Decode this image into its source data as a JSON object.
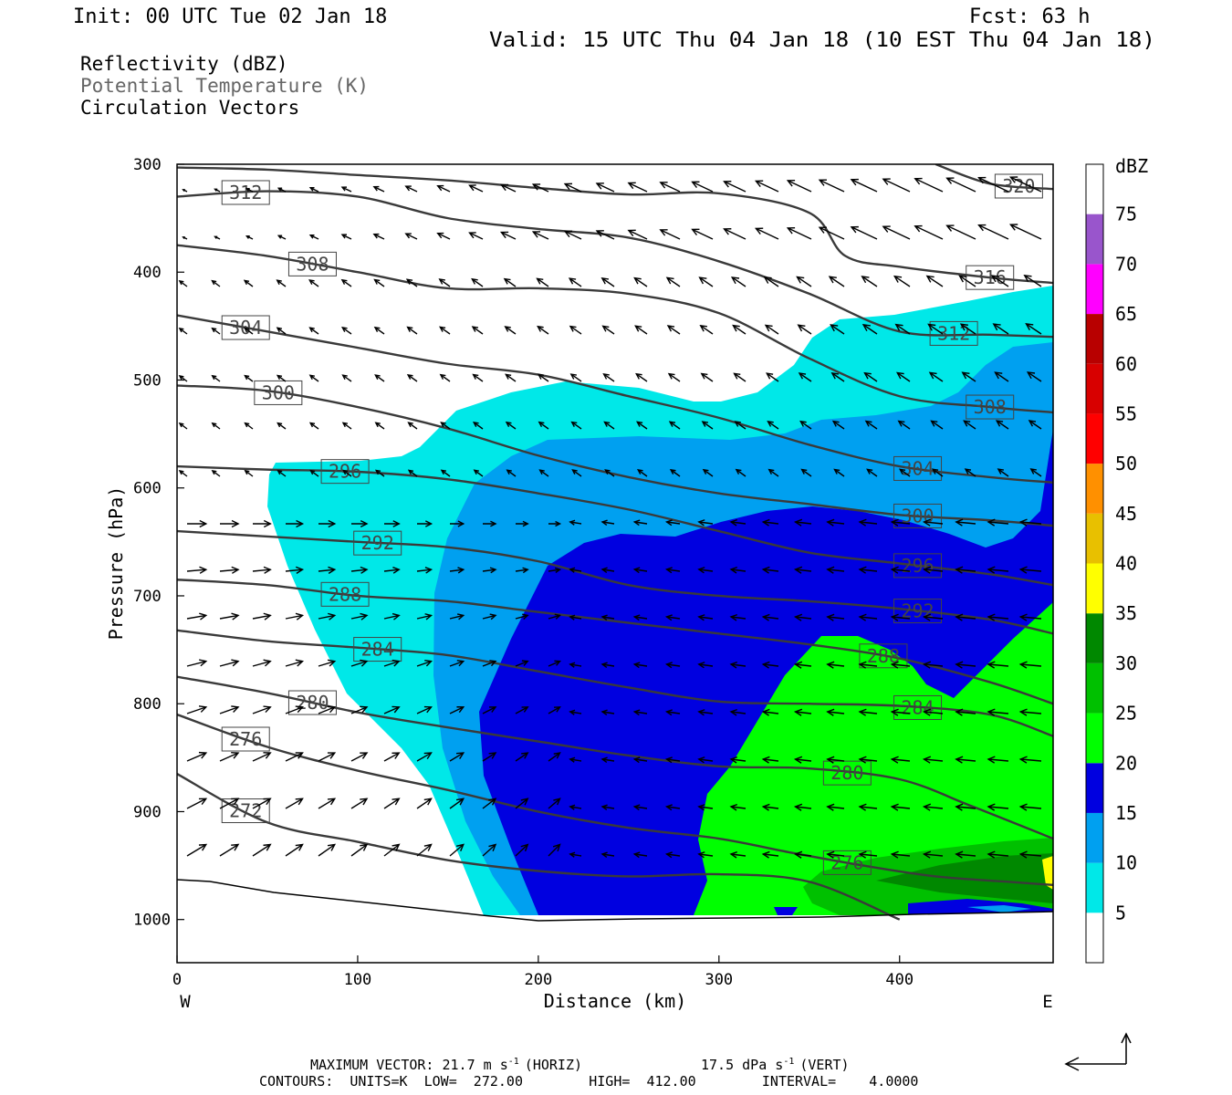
{
  "header": {
    "init": "Init: 00 UTC Tue 02 Jan 18",
    "fcst": "Fcst:   63 h",
    "valid": "Valid: 15 UTC Thu 04 Jan 18 (10 EST Thu 04 Jan 18)",
    "fields": [
      "Reflectivity (dBZ)",
      "Potential Temperature (K)",
      "Circulation Vectors"
    ]
  },
  "chart_data": {
    "type": "cross-section",
    "xlabel": "Distance (km)",
    "ylabel": "Pressure (hPa)",
    "xlim": [
      0,
      485
    ],
    "ylim": [
      1040,
      300
    ],
    "x_ticks": [
      0,
      100,
      200,
      300,
      400
    ],
    "y_ticks": [
      300,
      400,
      500,
      600,
      700,
      800,
      900,
      1000
    ],
    "x_end_labels": {
      "left": "W",
      "right": "E"
    },
    "reflectivity_levels": [
      5,
      10,
      15,
      20,
      25,
      30,
      35,
      40,
      45,
      50,
      55,
      60,
      65,
      70,
      75
    ],
    "reflectivity_colors": [
      "#ffffff",
      "#00e8e8",
      "#00a0f0",
      "#0000e0",
      "#00ff00",
      "#00c000",
      "#008800",
      "#ffff00",
      "#e8c000",
      "#ff9000",
      "#ff0000",
      "#d80000",
      "#b80000",
      "#ff00ff",
      "#9955cc"
    ],
    "colorbar_unit": "dBZ",
    "theta_contour_labels": [
      272,
      276,
      280,
      284,
      288,
      292,
      296,
      300,
      304,
      308,
      312,
      316,
      320
    ],
    "theta_contours": [
      {
        "value": 272,
        "x": [
          0,
          50,
          100,
          150,
          200,
          250,
          300,
          350,
          400
        ],
        "p": [
          865,
          910,
          928,
          945,
          955,
          960,
          958,
          965,
          1000
        ]
      },
      {
        "value": 276,
        "x": [
          0,
          50,
          100,
          150,
          200,
          250,
          300,
          340,
          380,
          420,
          460,
          485
        ],
        "p": [
          810,
          840,
          862,
          880,
          900,
          915,
          925,
          938,
          950,
          960,
          965,
          968
        ]
      },
      {
        "value": 280,
        "x": [
          0,
          50,
          100,
          150,
          200,
          250,
          300,
          350,
          400,
          440,
          485
        ],
        "p": [
          775,
          790,
          808,
          822,
          835,
          848,
          858,
          860,
          870,
          895,
          925
        ]
      },
      {
        "value": 284,
        "x": [
          0,
          50,
          100,
          150,
          200,
          250,
          300,
          350,
          400,
          450,
          485
        ],
        "p": [
          732,
          742,
          748,
          755,
          770,
          785,
          798,
          800,
          802,
          810,
          830
        ]
      },
      {
        "value": 288,
        "x": [
          0,
          50,
          100,
          150,
          200,
          250,
          300,
          350,
          400,
          450,
          485
        ],
        "p": [
          685,
          690,
          700,
          705,
          715,
          725,
          735,
          745,
          758,
          780,
          800
        ]
      },
      {
        "value": 292,
        "x": [
          0,
          50,
          100,
          150,
          200,
          250,
          300,
          350,
          400,
          450,
          485
        ],
        "p": [
          640,
          645,
          650,
          655,
          668,
          690,
          700,
          705,
          712,
          722,
          735
        ]
      },
      {
        "value": 296,
        "x": [
          0,
          50,
          100,
          150,
          200,
          250,
          300,
          350,
          400,
          450,
          485
        ],
        "p": [
          580,
          583,
          585,
          592,
          605,
          620,
          640,
          660,
          670,
          680,
          690
        ]
      },
      {
        "value": 300,
        "x": [
          0,
          50,
          100,
          150,
          200,
          250,
          300,
          350,
          400,
          450,
          485
        ],
        "p": [
          505,
          510,
          525,
          545,
          570,
          590,
          605,
          615,
          625,
          630,
          635
        ]
      },
      {
        "value": 304,
        "x": [
          0,
          50,
          100,
          150,
          200,
          250,
          300,
          350,
          400,
          450,
          485
        ],
        "p": [
          440,
          455,
          470,
          485,
          495,
          515,
          535,
          560,
          580,
          590,
          595
        ]
      },
      {
        "value": 308,
        "x": [
          0,
          50,
          100,
          150,
          200,
          250,
          300,
          350,
          400,
          450,
          485
        ],
        "p": [
          375,
          385,
          400,
          415,
          415,
          420,
          438,
          480,
          515,
          525,
          530
        ]
      },
      {
        "value": 312,
        "x": [
          0,
          50,
          100,
          150,
          200,
          250,
          300,
          350,
          400,
          450,
          485
        ],
        "p": [
          330,
          325,
          330,
          350,
          360,
          368,
          390,
          420,
          455,
          458,
          460
        ]
      },
      {
        "value": 316,
        "x": [
          0,
          50,
          100,
          150,
          200,
          250,
          300,
          350,
          370,
          400,
          450,
          485
        ],
        "p": [
          303,
          305,
          310,
          315,
          322,
          328,
          327,
          345,
          385,
          395,
          405,
          410
        ]
      },
      {
        "value": 320,
        "x": [
          420,
          450,
          485
        ],
        "p": [
          300,
          318,
          323
        ]
      }
    ],
    "annotations": {
      "max_vector": "MAXIMUM VECTOR:  21.7 m s",
      "horiz": "(HORIZ)",
      "vert_value": "17.5 dPa s",
      "vert": "(VERT)",
      "exponent": "-1",
      "contours": "CONTOURS:  UNITS=K  LOW=  272.00        HIGH=  412.00        INTERVAL=    4.0000"
    }
  }
}
